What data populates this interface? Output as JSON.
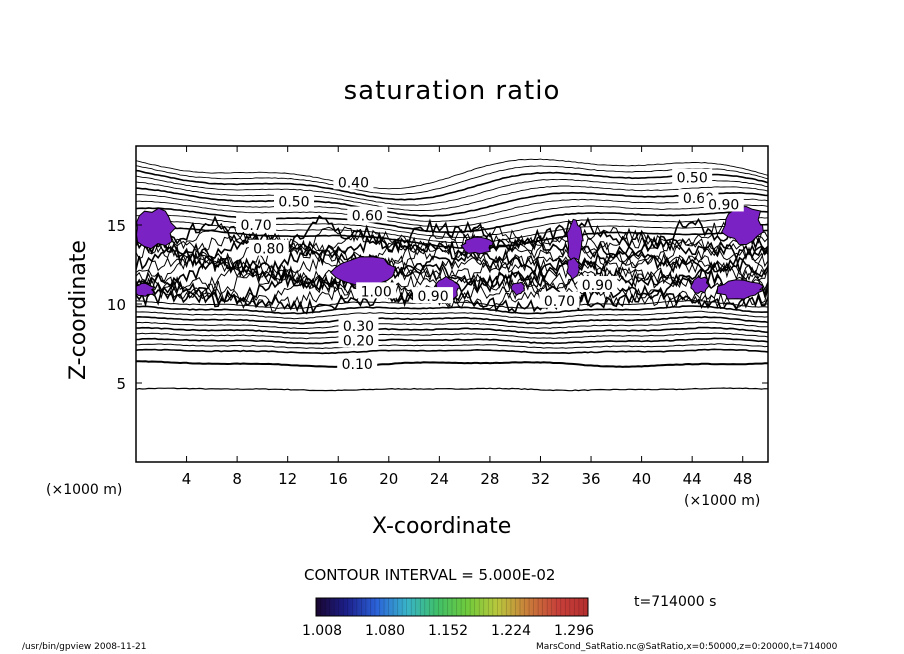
{
  "chart_data": {
    "type": "contour",
    "title": "saturation ratio",
    "xlabel": "X-coordinate",
    "ylabel": "Z-coordinate",
    "x_unit": "(×1000 m)",
    "y_unit": "(×1000 m)",
    "xlim": [
      0,
      50
    ],
    "ylim": [
      0,
      20
    ],
    "x_ticks": [
      4,
      8,
      12,
      16,
      20,
      24,
      28,
      32,
      36,
      40,
      44,
      48
    ],
    "y_ticks": [
      5,
      10,
      15
    ],
    "contour_interval_text": "CONTOUR INTERVAL = 5.000E-02",
    "contour_labels": [
      {
        "text": "0.10",
        "x": 17.5,
        "z": 6.2
      },
      {
        "text": "0.20",
        "x": 17.6,
        "z": 7.7
      },
      {
        "text": "0.30",
        "x": 17.6,
        "z": 8.6
      },
      {
        "text": "0.40",
        "x": 17.2,
        "z": 17.7
      },
      {
        "text": "0.50",
        "x": 12.5,
        "z": 16.5
      },
      {
        "text": "0.60",
        "x": 18.3,
        "z": 15.6
      },
      {
        "text": "0.70",
        "x": 9.5,
        "z": 15.0
      },
      {
        "text": "0.80",
        "x": 10.5,
        "z": 13.5
      },
      {
        "text": "0.90",
        "x": 36.5,
        "z": 11.2
      },
      {
        "text": "0.70",
        "x": 33.5,
        "z": 10.2
      },
      {
        "text": "0.50",
        "x": 44.0,
        "z": 18.0
      },
      {
        "text": "0.60",
        "x": 44.5,
        "z": 16.7
      },
      {
        "text": "0.90",
        "x": 46.5,
        "z": 16.3
      },
      {
        "text": "1.00",
        "x": 19.0,
        "z": 10.8
      },
      {
        "text": "0.90",
        "x": 23.5,
        "z": 10.5
      }
    ],
    "colorbar": {
      "tick_labels": [
        "1.008",
        "1.080",
        "1.152",
        "1.224",
        "1.296"
      ],
      "min": 1.008,
      "max": 1.296,
      "colors": [
        "#1a0630",
        "#1c1f8a",
        "#2b62d8",
        "#39b3c9",
        "#3fbf6a",
        "#6fca3c",
        "#b9c73d",
        "#c97d3a",
        "#c7403a",
        "#b52f2f"
      ]
    },
    "supersaturated_fill_color": "#7b22c4",
    "time_text": "t=714000  s"
  },
  "footer": {
    "left": "/usr/bin/gpview   2008-11-21",
    "right": "MarsCond_SatRatio.nc@SatRatio,x=0:50000,z=0:20000,t=714000"
  }
}
